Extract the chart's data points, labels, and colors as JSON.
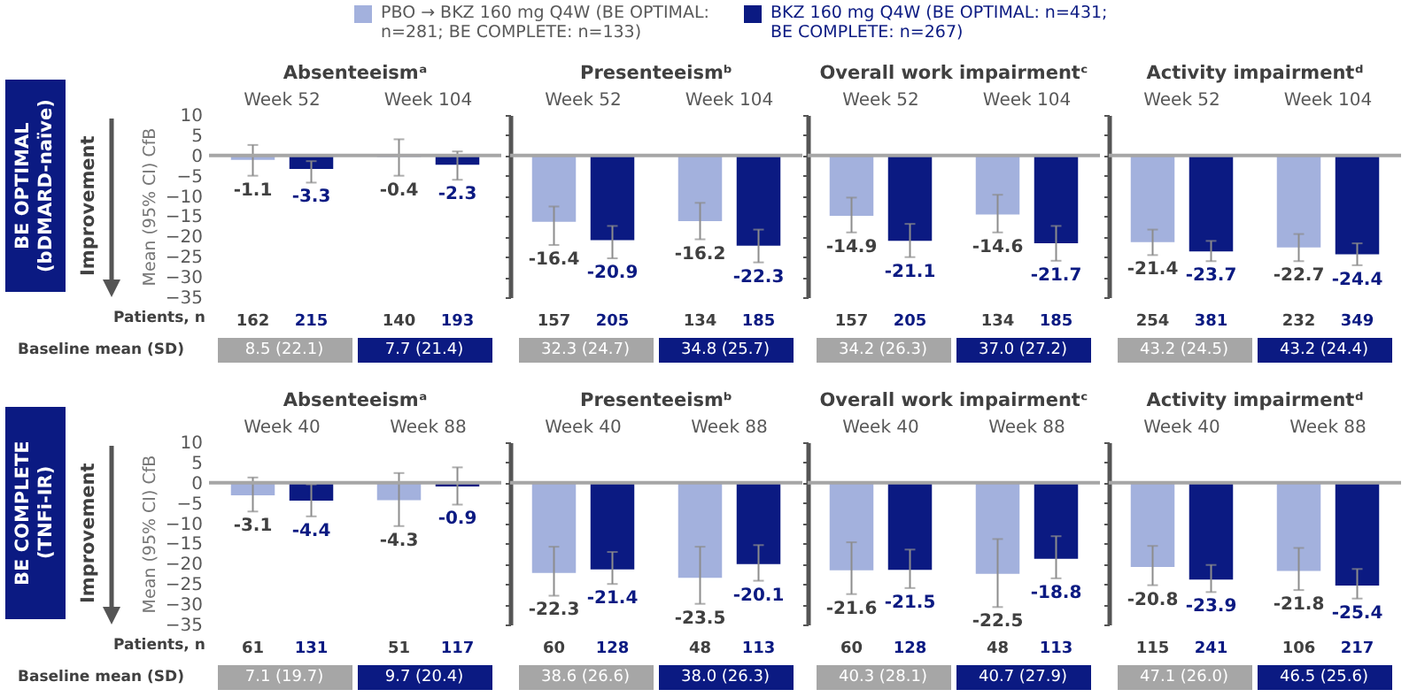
{
  "chart_data": [
    {
      "type": "bar",
      "title": "Absenteeismᵃ",
      "ylabel": "Mean (95% CI) CfB",
      "categories": [
        "Week 52",
        "Week 104"
      ],
      "legend": "top",
      "data_labels": true,
      "ylim": [
        -35,
        10
      ],
      "yticks": [
        10,
        5,
        0,
        -5,
        -10,
        -15,
        -20,
        -25,
        -30,
        -35
      ],
      "series": [
        {
          "name": "PBO → BKZ 160 mg Q4W (BE OPTIMAL: n=281; BE COMPLETE: n=133)",
          "color": "#a3b1dd",
          "values": [
            -1.1,
            -0.4
          ],
          "errors": [
            [
              -5,
              2.6
            ],
            [
              -5,
              4
            ]
          ]
        },
        {
          "name": "BKZ 160 mg Q4W (BE OPTIMAL: n=431; BE COMPLETE: n=267)",
          "color": "#0b1a82",
          "values": [
            -3.3,
            -2.3
          ],
          "errors": [
            [
              -6.7,
              -1.4
            ],
            [
              -6,
              1
            ]
          ]
        }
      ],
      "annotations": [
        "BE OPTIMAL (bDMARD-naïve)",
        "Improvement",
        "Patients, n",
        "Baseline mean (SD)",
        "162",
        "215",
        "140",
        "193",
        "8.5 (22.1)",
        "7.7 (21.4)"
      ]
    },
    {
      "type": "bar",
      "title": "Presenteeismᵇ",
      "categories": [
        "Week 52",
        "Week 104"
      ],
      "data_labels": true,
      "tick_labels": "x",
      "ylim": [
        -35,
        10
      ],
      "yticks": [
        10,
        5,
        0,
        -5,
        -10,
        -15,
        -20,
        -25,
        -30,
        -35
      ],
      "series": [
        {
          "color": "#a3b1dd",
          "values": [
            -16.4,
            -16.2
          ],
          "errors": [
            [
              -22.1,
              -12.6
            ],
            [
              -20.7,
              -11.7
            ]
          ]
        },
        {
          "color": "#0b1a82",
          "values": [
            -20.9,
            -22.3
          ],
          "errors": [
            [
              -25.4,
              -17.4
            ],
            [
              -26.4,
              -18.3
            ]
          ]
        }
      ],
      "annotations": [
        "157",
        "205",
        "134",
        "185",
        "32.3 (24.7)",
        "34.8 (25.7)"
      ]
    },
    {
      "type": "bar",
      "title": "Overall work impairmentᶜ",
      "categories": [
        "Week 52",
        "Week 104"
      ],
      "data_labels": true,
      "tick_labels": "x",
      "ylim": [
        -35,
        10
      ],
      "yticks": [
        10,
        5,
        0,
        -5,
        -10,
        -15,
        -20,
        -25,
        -30,
        -35
      ],
      "series": [
        {
          "color": "#a3b1dd",
          "values": [
            -14.9,
            -14.6
          ],
          "errors": [
            [
              -19,
              -10.4
            ],
            [
              -19,
              -9.7
            ]
          ]
        },
        {
          "color": "#0b1a82",
          "values": [
            -21.1,
            -21.7
          ],
          "errors": [
            [
              -25.1,
              -16.9
            ],
            [
              -26,
              -17.4
            ]
          ]
        }
      ],
      "annotations": [
        "157",
        "205",
        "134",
        "185",
        "34.2 (26.3)",
        "37.0 (27.2)"
      ]
    },
    {
      "type": "bar",
      "title": "Activity impairmentᵈ",
      "categories": [
        "Week 52",
        "Week 104"
      ],
      "data_labels": true,
      "tick_labels": "x",
      "ylim": [
        -35,
        10
      ],
      "yticks": [
        10,
        5,
        0,
        -5,
        -10,
        -15,
        -20,
        -25,
        -30,
        -35
      ],
      "series": [
        {
          "color": "#a3b1dd",
          "values": [
            -21.4,
            -22.7
          ],
          "errors": [
            [
              -24.6,
              -18.3
            ],
            [
              -26.1,
              -19.4
            ]
          ]
        },
        {
          "color": "#0b1a82",
          "values": [
            -23.7,
            -24.4
          ],
          "errors": [
            [
              -26.1,
              -21.1
            ],
            [
              -27.1,
              -21.7
            ]
          ]
        }
      ],
      "annotations": [
        "254",
        "381",
        "232",
        "349",
        "43.2 (24.5)",
        "43.2 (24.4)"
      ]
    },
    {
      "type": "bar",
      "title": "Absenteeismᵃ",
      "ylabel": "Mean (95% CI) CfB",
      "categories": [
        "Week 40",
        "Week 88"
      ],
      "data_labels": true,
      "ylim": [
        -35,
        10
      ],
      "yticks": [
        10,
        5,
        0,
        -5,
        -10,
        -15,
        -20,
        -25,
        -30,
        -35
      ],
      "series": [
        {
          "color": "#a3b1dd",
          "values": [
            -3.1,
            -4.3
          ],
          "errors": [
            [
              -7.1,
              1.3
            ],
            [
              -10.7,
              2.4
            ]
          ]
        },
        {
          "color": "#0b1a82",
          "values": [
            -4.4,
            -0.9
          ],
          "errors": [
            [
              -8.3,
              -0.4
            ],
            [
              -5.4,
              3.8
            ]
          ]
        }
      ],
      "annotations": [
        "BE COMPLETE (TNFi-IR)",
        "Improvement",
        "Patients, n",
        "Baseline mean (SD)",
        "61",
        "131",
        "51",
        "117",
        "7.1 (19.7)",
        "9.7 (20.4)"
      ]
    },
    {
      "type": "bar",
      "title": "Presenteeismᵇ",
      "categories": [
        "Week 40",
        "Week 88"
      ],
      "data_labels": true,
      "tick_labels": "x",
      "ylim": [
        -35,
        10
      ],
      "yticks": [
        10,
        5,
        0,
        -5,
        -10,
        -15,
        -20,
        -25,
        -30,
        -35
      ],
      "series": [
        {
          "color": "#a3b1dd",
          "values": [
            -22.3,
            -23.5
          ],
          "errors": [
            [
              -27.9,
              -15.8
            ],
            [
              -29.9,
              -15.8
            ]
          ]
        },
        {
          "color": "#0b1a82",
          "values": [
            -21.4,
            -20.1
          ],
          "errors": [
            [
              -25,
              -17.1
            ],
            [
              -24.2,
              -15.4
            ]
          ]
        }
      ],
      "annotations": [
        "60",
        "128",
        "48",
        "113",
        "38.6 (26.6)",
        "38.0 (26.3)"
      ]
    },
    {
      "type": "bar",
      "title": "Overall work impairmentᶜ",
      "categories": [
        "Week 40",
        "Week 88"
      ],
      "data_labels": true,
      "tick_labels": "x",
      "ylim": [
        -35,
        10
      ],
      "yticks": [
        10,
        5,
        0,
        -5,
        -10,
        -15,
        -20,
        -25,
        -30,
        -35
      ],
      "series": [
        {
          "color": "#a3b1dd",
          "values": [
            -21.6,
            -22.5
          ],
          "errors": [
            [
              -27.5,
              -14.7
            ],
            [
              -30.7,
              -13.9
            ]
          ]
        },
        {
          "color": "#0b1a82",
          "values": [
            -21.5,
            -18.8
          ],
          "errors": [
            [
              -26,
              -16.5
            ],
            [
              -23.6,
              -13.2
            ]
          ]
        }
      ],
      "annotations": [
        "60",
        "128",
        "48",
        "113",
        "40.3 (28.1)",
        "40.7 (27.9)"
      ]
    },
    {
      "type": "bar",
      "title": "Activity impairmentᵈ",
      "categories": [
        "Week 40",
        "Week 88"
      ],
      "data_labels": true,
      "tick_labels": "x",
      "ylim": [
        -35,
        10
      ],
      "yticks": [
        10,
        5,
        0,
        -5,
        -10,
        -15,
        -20,
        -25,
        -30,
        -35
      ],
      "series": [
        {
          "color": "#a3b1dd",
          "values": [
            -20.8,
            -21.8
          ],
          "errors": [
            [
              -25.3,
              -15.6
            ],
            [
              -26.5,
              -16.1
            ]
          ]
        },
        {
          "color": "#0b1a82",
          "values": [
            -23.9,
            -25.4
          ],
          "errors": [
            [
              -27,
              -20.3
            ],
            [
              -28.6,
              -21.3
            ]
          ]
        }
      ],
      "annotations": [
        "115",
        "241",
        "106",
        "217",
        "47.1 (26.0)",
        "46.5 (25.6)"
      ]
    }
  ]
}
